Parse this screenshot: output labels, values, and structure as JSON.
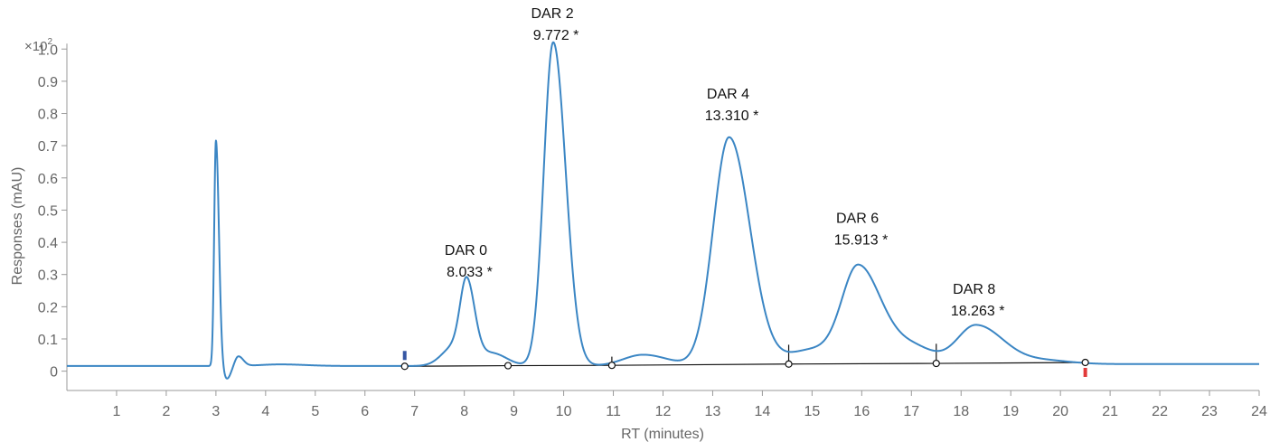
{
  "chart_data": {
    "type": "line",
    "xlabel": "RT (minutes)",
    "ylabel": "Responses (mAU)",
    "y_multiplier_label": "×10",
    "y_multiplier_exp": "2",
    "xlim": [
      0,
      24
    ],
    "ylim": [
      -0.06,
      1.04
    ],
    "x_ticks": [
      1,
      2,
      3,
      4,
      5,
      6,
      7,
      8,
      9,
      10,
      11,
      12,
      13,
      14,
      15,
      16,
      17,
      18,
      19,
      20,
      21,
      22,
      23,
      24
    ],
    "y_ticks": [
      {
        "value": 0,
        "label": "0"
      },
      {
        "value": 0.1,
        "label": "0.1"
      },
      {
        "value": 0.2,
        "label": "0.2"
      },
      {
        "value": 0.3,
        "label": "0.3"
      },
      {
        "value": 0.4,
        "label": "0.4"
      },
      {
        "value": 0.5,
        "label": "0.5"
      },
      {
        "value": 0.6,
        "label": "0.6"
      },
      {
        "value": 0.7,
        "label": "0.7"
      },
      {
        "value": 0.8,
        "label": "0.8"
      },
      {
        "value": 0.9,
        "label": "0.9"
      },
      {
        "value": 1.0,
        "label": "1.0"
      }
    ],
    "grid": false,
    "trace_color": "#3b86c4",
    "baseline_color": "#111111",
    "signal_baseline": 0.016,
    "peaks": [
      {
        "rt": 3.0,
        "height": 0.7,
        "width": 0.035,
        "right_width": 0.06
      },
      {
        "rt": 3.45,
        "height": 0.03,
        "width": 0.07,
        "right_width": 0.1
      },
      {
        "rt": 3.22,
        "height": -0.04,
        "width": 0.07,
        "right_width": 0.08
      },
      {
        "rt": 4.3,
        "height": 0.005,
        "width": 0.4,
        "right_width": 0.5
      },
      {
        "rt": 7.8,
        "height": 0.06,
        "width": 0.25,
        "right_width": 0.25
      },
      {
        "rt": 8.05,
        "height": 0.23,
        "width": 0.13,
        "right_width": 0.16
      },
      {
        "rt": 8.55,
        "height": 0.04,
        "width": 0.3,
        "right_width": 0.3
      },
      {
        "rt": 9.79,
        "height": 1.005,
        "width": 0.19,
        "right_width": 0.25
      },
      {
        "rt": 11.6,
        "height": 0.035,
        "width": 0.4,
        "right_width": 0.5
      },
      {
        "rt": 13.33,
        "height": 0.71,
        "width": 0.32,
        "right_width": 0.42
      },
      {
        "rt": 15.0,
        "height": 0.05,
        "width": 0.5,
        "right_width": 0.5
      },
      {
        "rt": 15.93,
        "height": 0.3,
        "width": 0.33,
        "right_width": 0.45
      },
      {
        "rt": 17.0,
        "height": 0.06,
        "width": 0.5,
        "right_width": 0.45
      },
      {
        "rt": 18.3,
        "height": 0.125,
        "width": 0.38,
        "right_width": 0.55
      },
      {
        "rt": 19.7,
        "height": 0.012,
        "width": 0.5,
        "right_width": 0.5
      }
    ],
    "integration_baseline": [
      {
        "x": 6.8,
        "y": 0.015
      },
      {
        "x": 8.88,
        "y": 0.017
      },
      {
        "x": 10.97,
        "y": 0.018
      },
      {
        "x": 14.53,
        "y": 0.022
      },
      {
        "x": 17.5,
        "y": 0.024
      },
      {
        "x": 20.5,
        "y": 0.027
      }
    ],
    "drop_lines": [
      {
        "x": 10.97,
        "top": 0.045
      },
      {
        "x": 14.53,
        "top": 0.082
      },
      {
        "x": 17.5,
        "top": 0.085
      }
    ],
    "start_marker": {
      "x": 6.8,
      "color": "#3556a3"
    },
    "end_marker": {
      "x": 20.5,
      "color": "#e23a3a"
    },
    "annotations": [
      {
        "name": "DAR 0",
        "rt_label": "8.033 *",
        "x": 8.033,
        "y_top": 0.4
      },
      {
        "name": "DAR 2",
        "rt_label": "9.772 *",
        "x": 9.772,
        "y_top": 1.135
      },
      {
        "name": "DAR 4",
        "rt_label": "13.310 *",
        "x": 13.31,
        "y_top": 0.885
      },
      {
        "name": "DAR 6",
        "rt_label": "15.913 *",
        "x": 15.913,
        "y_top": 0.5
      },
      {
        "name": "DAR 8",
        "rt_label": "18.263 *",
        "x": 18.263,
        "y_top": 0.28
      }
    ]
  }
}
